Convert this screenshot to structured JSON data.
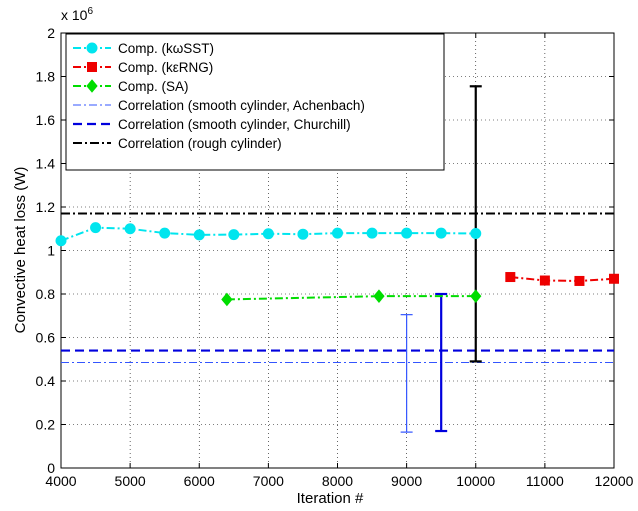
{
  "chart_data": {
    "type": "line",
    "xlabel": "Iteration #",
    "ylabel": "Convective heat loss (W)",
    "y_multiplier": "x 10",
    "y_multiplier_exp": "6",
    "xlim": [
      4000,
      12000
    ],
    "ylim": [
      0,
      2
    ],
    "x_ticks": [
      4000,
      5000,
      6000,
      7000,
      8000,
      9000,
      10000,
      11000,
      12000
    ],
    "y_ticks": [
      0,
      0.2,
      0.4,
      0.6,
      0.8,
      1,
      1.2,
      1.4,
      1.6,
      1.8,
      2
    ],
    "legend_position": "top-left",
    "series": [
      {
        "name": "Comp. (kωSST)",
        "color": "#00e5ee",
        "marker": "circle",
        "line": "dash-dot",
        "x": [
          4000,
          4500,
          5000,
          5500,
          6000,
          6500,
          7000,
          7500,
          8000,
          8500,
          9000,
          9500,
          10000
        ],
        "y": [
          1.045,
          1.105,
          1.1,
          1.08,
          1.072,
          1.073,
          1.077,
          1.075,
          1.08,
          1.08,
          1.08,
          1.08,
          1.078
        ]
      },
      {
        "name": "Comp. (kεRNG)",
        "color": "#ee0000",
        "marker": "square",
        "line": "dash-dot",
        "x": [
          10500,
          11000,
          11500,
          12000
        ],
        "y": [
          0.878,
          0.862,
          0.86,
          0.87
        ]
      },
      {
        "name": "Comp. (SA)",
        "color": "#00dd00",
        "marker": "diamond",
        "line": "dash-dot",
        "x": [
          6400,
          8600,
          10000
        ],
        "y": [
          0.775,
          0.79,
          0.79
        ]
      }
    ],
    "reference_lines": [
      {
        "name": "Correlation (smooth cylinder, Achenbach)",
        "color": "#3355ff",
        "style": "thin-dash-dot",
        "y": 0.485
      },
      {
        "name": "Correlation (smooth cylinder, Churchill)",
        "color": "#0000dd",
        "style": "thick-dash",
        "y": 0.54
      },
      {
        "name": "Correlation (rough cylinder)",
        "color": "#000000",
        "style": "dash-dot",
        "y": 1.17
      }
    ],
    "error_bars": [
      {
        "x": 9000,
        "low": 0.165,
        "high": 0.705,
        "color": "#3355ff",
        "weight": "thin"
      },
      {
        "x": 9500,
        "low": 0.17,
        "high": 0.8,
        "color": "#0000dd",
        "weight": "thick"
      },
      {
        "x": 10000,
        "low": 0.49,
        "high": 1.755,
        "color": "#000000",
        "weight": "thick"
      }
    ]
  }
}
